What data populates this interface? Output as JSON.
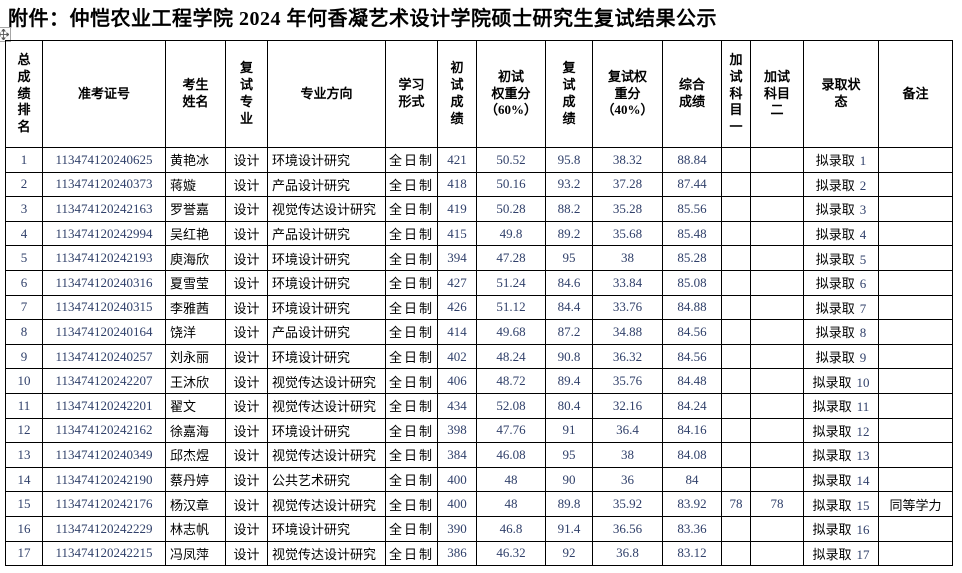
{
  "page": {
    "title": "附件：仲恺农业工程学院 2024 年何香凝艺术设计学院硕士研究生复试结果公示"
  },
  "colors": {
    "grid": "#000000",
    "digits": "#30406a"
  },
  "icons": {
    "table_move_handle": "four-way-arrow-icon"
  },
  "table": {
    "headers": [
      "总\n成\n绩\n排\n名",
      "准考证号",
      "考生\n姓名",
      "复\n试\n专\n业",
      "专业方向",
      "学习\n形式",
      "初\n试\n成\n绩",
      "初试\n权重分\n（60%）",
      "复\n试\n成\n绩",
      "复试权\n重分\n（40%）",
      "综合\n成绩",
      "加\n试\n科\n目\n一",
      "加试\n科目\n二",
      "录取状\n态",
      "备注"
    ],
    "rows": [
      {
        "rank": "1",
        "ticket": "113474120240625",
        "name": "黄艳冰",
        "retest_major": "设计",
        "direction": "环境设计研究",
        "study_mode": "全日制",
        "initial_score": "421",
        "initial_weighted": "50.52",
        "retest_score": "95.8",
        "retest_weighted": "38.32",
        "total_score": "88.84",
        "extra_subject_1": "",
        "extra_subject_2": "",
        "status": "拟录取",
        "status_no": "1",
        "remark": ""
      },
      {
        "rank": "2",
        "ticket": "113474120240373",
        "name": "蒋嫙",
        "retest_major": "设计",
        "direction": "产品设计研究",
        "study_mode": "全日制",
        "initial_score": "418",
        "initial_weighted": "50.16",
        "retest_score": "93.2",
        "retest_weighted": "37.28",
        "total_score": "87.44",
        "extra_subject_1": "",
        "extra_subject_2": "",
        "status": "拟录取",
        "status_no": "2",
        "remark": ""
      },
      {
        "rank": "3",
        "ticket": "113474120242163",
        "name": "罗誉嘉",
        "retest_major": "设计",
        "direction": "视觉传达设计研究",
        "study_mode": "全日制",
        "initial_score": "419",
        "initial_weighted": "50.28",
        "retest_score": "88.2",
        "retest_weighted": "35.28",
        "total_score": "85.56",
        "extra_subject_1": "",
        "extra_subject_2": "",
        "status": "拟录取",
        "status_no": "3",
        "remark": ""
      },
      {
        "rank": "4",
        "ticket": "113474120242994",
        "name": "吴红艳",
        "retest_major": "设计",
        "direction": "产品设计研究",
        "study_mode": "全日制",
        "initial_score": "415",
        "initial_weighted": "49.8",
        "retest_score": "89.2",
        "retest_weighted": "35.68",
        "total_score": "85.48",
        "extra_subject_1": "",
        "extra_subject_2": "",
        "status": "拟录取",
        "status_no": "4",
        "remark": ""
      },
      {
        "rank": "5",
        "ticket": "113474120242193",
        "name": "庾海欣",
        "retest_major": "设计",
        "direction": "环境设计研究",
        "study_mode": "全日制",
        "initial_score": "394",
        "initial_weighted": "47.28",
        "retest_score": "95",
        "retest_weighted": "38",
        "total_score": "85.28",
        "extra_subject_1": "",
        "extra_subject_2": "",
        "status": "拟录取",
        "status_no": "5",
        "remark": ""
      },
      {
        "rank": "6",
        "ticket": "113474120240316",
        "name": "夏雪莹",
        "retest_major": "设计",
        "direction": "环境设计研究",
        "study_mode": "全日制",
        "initial_score": "427",
        "initial_weighted": "51.24",
        "retest_score": "84.6",
        "retest_weighted": "33.84",
        "total_score": "85.08",
        "extra_subject_1": "",
        "extra_subject_2": "",
        "status": "拟录取",
        "status_no": "6",
        "remark": ""
      },
      {
        "rank": "7",
        "ticket": "113474120240315",
        "name": "李雅茜",
        "retest_major": "设计",
        "direction": "环境设计研究",
        "study_mode": "全日制",
        "initial_score": "426",
        "initial_weighted": "51.12",
        "retest_score": "84.4",
        "retest_weighted": "33.76",
        "total_score": "84.88",
        "extra_subject_1": "",
        "extra_subject_2": "",
        "status": "拟录取",
        "status_no": "7",
        "remark": ""
      },
      {
        "rank": "8",
        "ticket": "113474120240164",
        "name": "饶洋",
        "retest_major": "设计",
        "direction": "产品设计研究",
        "study_mode": "全日制",
        "initial_score": "414",
        "initial_weighted": "49.68",
        "retest_score": "87.2",
        "retest_weighted": "34.88",
        "total_score": "84.56",
        "extra_subject_1": "",
        "extra_subject_2": "",
        "status": "拟录取",
        "status_no": "8",
        "remark": ""
      },
      {
        "rank": "9",
        "ticket": "113474120240257",
        "name": "刘永丽",
        "retest_major": "设计",
        "direction": "环境设计研究",
        "study_mode": "全日制",
        "initial_score": "402",
        "initial_weighted": "48.24",
        "retest_score": "90.8",
        "retest_weighted": "36.32",
        "total_score": "84.56",
        "extra_subject_1": "",
        "extra_subject_2": "",
        "status": "拟录取",
        "status_no": "9",
        "remark": ""
      },
      {
        "rank": "10",
        "ticket": "113474120242207",
        "name": "王沐欣",
        "retest_major": "设计",
        "direction": "视觉传达设计研究",
        "study_mode": "全日制",
        "initial_score": "406",
        "initial_weighted": "48.72",
        "retest_score": "89.4",
        "retest_weighted": "35.76",
        "total_score": "84.48",
        "extra_subject_1": "",
        "extra_subject_2": "",
        "status": "拟录取",
        "status_no": "10",
        "remark": ""
      },
      {
        "rank": "11",
        "ticket": "113474120242201",
        "name": "翟文",
        "retest_major": "设计",
        "direction": "视觉传达设计研究",
        "study_mode": "全日制",
        "initial_score": "434",
        "initial_weighted": "52.08",
        "retest_score": "80.4",
        "retest_weighted": "32.16",
        "total_score": "84.24",
        "extra_subject_1": "",
        "extra_subject_2": "",
        "status": "拟录取",
        "status_no": "11",
        "remark": ""
      },
      {
        "rank": "12",
        "ticket": "113474120242162",
        "name": "徐嘉海",
        "retest_major": "设计",
        "direction": "环境设计研究",
        "study_mode": "全日制",
        "initial_score": "398",
        "initial_weighted": "47.76",
        "retest_score": "91",
        "retest_weighted": "36.4",
        "total_score": "84.16",
        "extra_subject_1": "",
        "extra_subject_2": "",
        "status": "拟录取",
        "status_no": "12",
        "remark": ""
      },
      {
        "rank": "13",
        "ticket": "113474120240349",
        "name": "邱杰煜",
        "retest_major": "设计",
        "direction": "视觉传达设计研究",
        "study_mode": "全日制",
        "initial_score": "384",
        "initial_weighted": "46.08",
        "retest_score": "95",
        "retest_weighted": "38",
        "total_score": "84.08",
        "extra_subject_1": "",
        "extra_subject_2": "",
        "status": "拟录取",
        "status_no": "13",
        "remark": ""
      },
      {
        "rank": "14",
        "ticket": "113474120242190",
        "name": "蔡丹婷",
        "retest_major": "设计",
        "direction": "公共艺术研究",
        "study_mode": "全日制",
        "initial_score": "400",
        "initial_weighted": "48",
        "retest_score": "90",
        "retest_weighted": "36",
        "total_score": "84",
        "extra_subject_1": "",
        "extra_subject_2": "",
        "status": "拟录取",
        "status_no": "14",
        "remark": ""
      },
      {
        "rank": "15",
        "ticket": "113474120242176",
        "name": "杨汉章",
        "retest_major": "设计",
        "direction": "视觉传达设计研究",
        "study_mode": "全日制",
        "initial_score": "400",
        "initial_weighted": "48",
        "retest_score": "89.8",
        "retest_weighted": "35.92",
        "total_score": "83.92",
        "extra_subject_1": "78",
        "extra_subject_2": "78",
        "status": "拟录取",
        "status_no": "15",
        "remark": "同等学力"
      },
      {
        "rank": "16",
        "ticket": "113474120242229",
        "name": "林志帆",
        "retest_major": "设计",
        "direction": "环境设计研究",
        "study_mode": "全日制",
        "initial_score": "390",
        "initial_weighted": "46.8",
        "retest_score": "91.4",
        "retest_weighted": "36.56",
        "total_score": "83.36",
        "extra_subject_1": "",
        "extra_subject_2": "",
        "status": "拟录取",
        "status_no": "16",
        "remark": ""
      },
      {
        "rank": "17",
        "ticket": "113474120242215",
        "name": "冯凤萍",
        "retest_major": "设计",
        "direction": "视觉传达设计研究",
        "study_mode": "全日制",
        "initial_score": "386",
        "initial_weighted": "46.32",
        "retest_score": "92",
        "retest_weighted": "36.8",
        "total_score": "83.12",
        "extra_subject_1": "",
        "extra_subject_2": "",
        "status": "拟录取",
        "status_no": "17",
        "remark": ""
      }
    ]
  }
}
